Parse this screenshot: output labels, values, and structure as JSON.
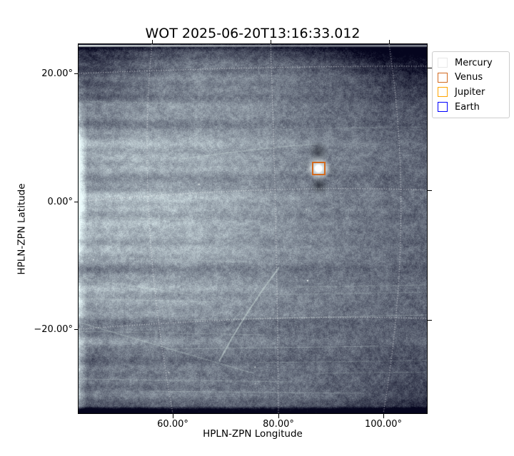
{
  "figure": {
    "background": "#ffffff"
  },
  "chart_data": {
    "type": "heatmap",
    "title": "WOT 2025-06-20T13:16:33.012",
    "xlabel": "HPLN-ZPN Longitude",
    "ylabel": "HPLN-ZPN Latitude",
    "xticks": [
      "60.00°",
      "80.00°",
      "100.00°"
    ],
    "xtick_values_deg": [
      60,
      80,
      100
    ],
    "yticks": [
      "20.00°",
      "0.00°",
      "−20.00°"
    ],
    "ytick_values_deg": [
      20,
      0,
      -20
    ],
    "xlim_deg": [
      42.2,
      108.2
    ],
    "ylim_deg": [
      -33.2,
      24.6
    ],
    "grid": "white dotted curved graticule",
    "image_palette": {
      "dark": "#262b3c",
      "mid": "#6b7286",
      "bright": "#cdd6d6",
      "highlight": "#ffffff"
    },
    "legend": {
      "position": "outside upper right",
      "entries": [
        {
          "label": "Mercury",
          "color": "#e8e8e8"
        },
        {
          "label": "Venus",
          "color": "#d2691e"
        },
        {
          "label": "Jupiter",
          "color": "#ffa500"
        },
        {
          "label": "Earth",
          "color": "#0000ff"
        }
      ]
    },
    "visible_markers": [
      {
        "label": "Venus",
        "lon_deg": 87.6,
        "lat_deg": 5.2,
        "color": "#d2691e",
        "note": "bright saturated point source with dark blooming smudges above and below"
      }
    ]
  }
}
